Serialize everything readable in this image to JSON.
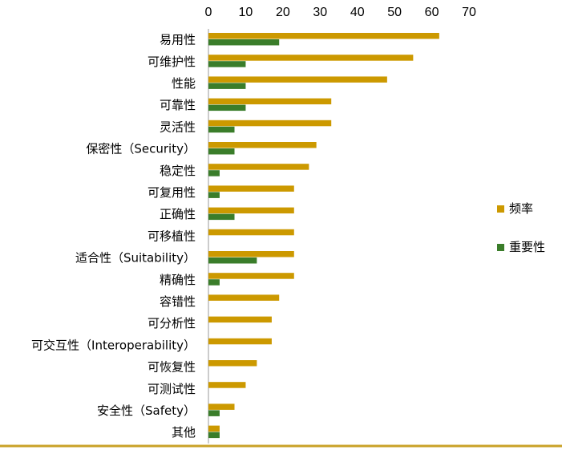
{
  "chart_data": {
    "type": "bar",
    "orientation": "horizontal",
    "categories": [
      "易用性",
      "可维护性",
      "性能",
      "可靠性",
      "灵活性",
      "保密性（Security）",
      "稳定性",
      "可复用性",
      "正确性",
      "可移植性",
      "适合性（Suitability）",
      "精确性",
      "容错性",
      "可分析性",
      "可交互性（Interoperability）",
      "可恢复性",
      "可测试性",
      "安全性（Safety）",
      "其他"
    ],
    "series": [
      {
        "name": "频率",
        "color": "#cc9900",
        "values": [
          62,
          55,
          48,
          33,
          33,
          29,
          27,
          23,
          23,
          23,
          23,
          23,
          19,
          17,
          17,
          13,
          10,
          7,
          3
        ]
      },
      {
        "name": "重要性",
        "color": "#3a7d2a",
        "values": [
          19,
          10,
          10,
          10,
          7,
          7,
          3,
          3,
          7,
          0,
          13,
          3,
          0,
          0,
          0,
          0,
          0,
          3,
          3
        ]
      }
    ],
    "xlim": [
      0,
      70
    ],
    "xticks": [
      "0",
      "10",
      "20",
      "30",
      "40",
      "50",
      "60",
      "70"
    ],
    "xaxis_position": "top",
    "grid": false,
    "legend_position": "right",
    "footer_rule_color": "#c9a227"
  }
}
